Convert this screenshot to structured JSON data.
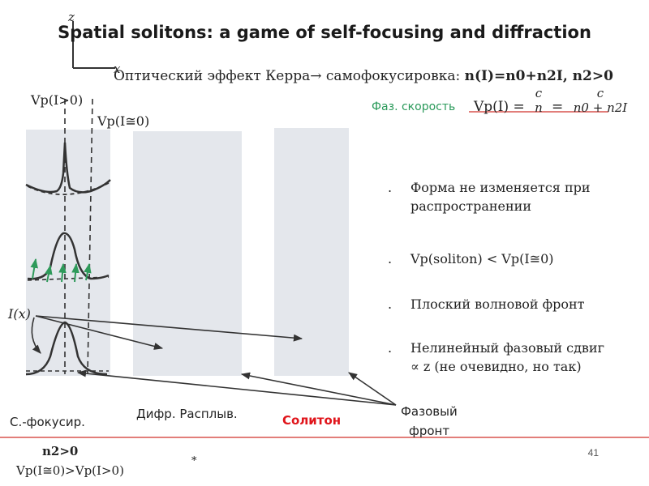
{
  "title": "Spatial solitons: a game of self-focusing and diffraction",
  "axes": {
    "z": "z",
    "x": "x"
  },
  "kerr": {
    "text": "Оптический эффект Керра→ самофокусировка:",
    "formula": "n(I)=n0+n2I, n2>0"
  },
  "phase_velocity": {
    "label": "Фаз. скорость",
    "lhs": "Vp(I) =",
    "frac1_num": "c",
    "frac1_den": "n",
    "eq": "=",
    "frac2_num": "c",
    "frac2_den": "n0 + n2I"
  },
  "diagram_labels": {
    "vp_high": "Vp(I>0)",
    "vp_zero": "Vp(I≅0)",
    "intensity": "I(x)"
  },
  "panels": {
    "self_focusing": "С.-фокусир.",
    "diffraction": "Дифр. Расплыв.",
    "soliton": "Солитон",
    "soliton_color": "#e0151b"
  },
  "phase_front_label": [
    "Фазовый",
    "фронт"
  ],
  "bullets": [
    [
      "Форма не изменяется при",
      "распространении"
    ],
    [
      "Vp(soliton) < Vp(I≅0)"
    ],
    [
      "Плоский волновой фронт"
    ],
    [
      "Нелинейный фазовый сдвиг",
      "∝ z (не очевидно, но так)"
    ]
  ],
  "footer": {
    "n2": "n2>0",
    "vp_relation": "Vp(I≅0)>Vp(I>0)",
    "asterisk": "*",
    "slide_number": "41",
    "rule_color": "#d9534f"
  },
  "colors": {
    "panel_fill": "#e4e7ec",
    "arrow_green": "#2e9a5a",
    "curve": "#333333"
  }
}
